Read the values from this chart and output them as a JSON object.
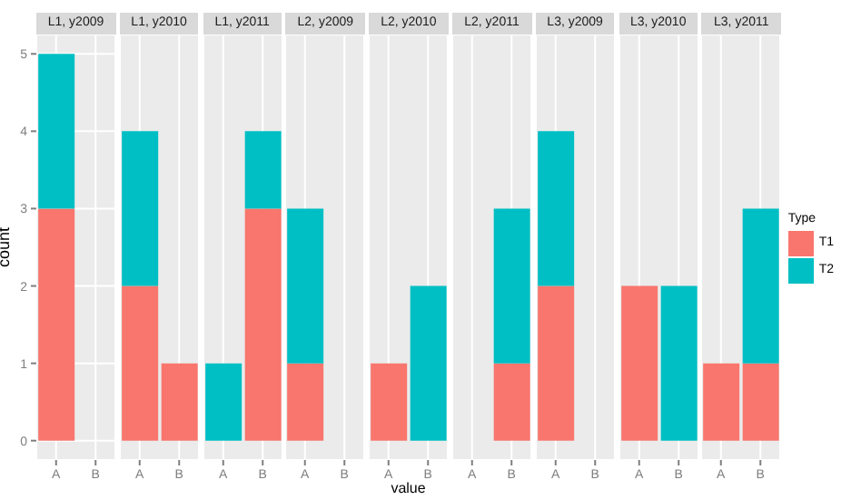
{
  "chart_data": [
    {
      "type": "bar",
      "title": "L1, y2009",
      "ylabel": "count",
      "categories": [
        "A",
        "B"
      ],
      "stacked": true,
      "ylim": [
        -0.25,
        5.25
      ],
      "yticks": [
        0,
        1,
        2,
        3,
        4,
        5
      ],
      "grid": true,
      "legend": false,
      "series": [
        {
          "color": "#f8766d",
          "values": [
            3,
            0
          ]
        },
        {
          "color": "#00bfc4",
          "values": [
            2,
            0
          ]
        }
      ]
    },
    {
      "type": "bar",
      "title": "L1, y2010",
      "categories": [
        "A",
        "B"
      ],
      "stacked": true,
      "ylim": [
        -0.25,
        5.25
      ],
      "yticks": [
        0,
        1,
        2,
        3,
        4,
        5
      ],
      "grid": true,
      "legend": false,
      "tick_labels": "x",
      "series": [
        {
          "color": "#f8766d",
          "values": [
            2,
            1
          ]
        },
        {
          "color": "#00bfc4",
          "values": [
            2,
            0
          ]
        }
      ]
    },
    {
      "type": "bar",
      "title": "L1, y2011",
      "categories": [
        "A",
        "B"
      ],
      "stacked": true,
      "ylim": [
        -0.25,
        5.25
      ],
      "yticks": [
        0,
        1,
        2,
        3,
        4,
        5
      ],
      "grid": true,
      "legend": false,
      "tick_labels": "x",
      "series": [
        {
          "color": "#f8766d",
          "values": [
            0,
            3
          ]
        },
        {
          "color": "#00bfc4",
          "values": [
            1,
            1
          ]
        }
      ]
    },
    {
      "type": "bar",
      "title": "L2, y2009",
      "categories": [
        "A",
        "B"
      ],
      "stacked": true,
      "ylim": [
        -0.25,
        5.25
      ],
      "yticks": [
        0,
        1,
        2,
        3,
        4,
        5
      ],
      "grid": true,
      "legend": false,
      "tick_labels": "x",
      "series": [
        {
          "color": "#f8766d",
          "values": [
            1,
            0
          ]
        },
        {
          "color": "#00bfc4",
          "values": [
            2,
            0
          ]
        }
      ]
    },
    {
      "type": "bar",
      "title": "L2, y2010",
      "xlabel": "value",
      "categories": [
        "A",
        "B"
      ],
      "stacked": true,
      "ylim": [
        -0.25,
        5.25
      ],
      "yticks": [
        0,
        1,
        2,
        3,
        4,
        5
      ],
      "grid": true,
      "legend": false,
      "tick_labels": "x",
      "series": [
        {
          "color": "#f8766d",
          "values": [
            1,
            0
          ]
        },
        {
          "color": "#00bfc4",
          "values": [
            0,
            2
          ]
        }
      ]
    },
    {
      "type": "bar",
      "title": "L2, y2011",
      "categories": [
        "A",
        "B"
      ],
      "stacked": true,
      "ylim": [
        -0.25,
        5.25
      ],
      "yticks": [
        0,
        1,
        2,
        3,
        4,
        5
      ],
      "grid": true,
      "legend": false,
      "tick_labels": "x",
      "series": [
        {
          "color": "#f8766d",
          "values": [
            0,
            1
          ]
        },
        {
          "color": "#00bfc4",
          "values": [
            0,
            2
          ]
        }
      ]
    },
    {
      "type": "bar",
      "title": "L3, y2009",
      "categories": [
        "A",
        "B"
      ],
      "stacked": true,
      "ylim": [
        -0.25,
        5.25
      ],
      "yticks": [
        0,
        1,
        2,
        3,
        4,
        5
      ],
      "grid": true,
      "legend": false,
      "tick_labels": "x",
      "series": [
        {
          "color": "#f8766d",
          "values": [
            2,
            0
          ]
        },
        {
          "color": "#00bfc4",
          "values": [
            2,
            0
          ]
        }
      ]
    },
    {
      "type": "bar",
      "title": "L3, y2010",
      "categories": [
        "A",
        "B"
      ],
      "stacked": true,
      "ylim": [
        -0.25,
        5.25
      ],
      "yticks": [
        0,
        1,
        2,
        3,
        4,
        5
      ],
      "grid": true,
      "legend": false,
      "tick_labels": "x",
      "series": [
        {
          "color": "#f8766d",
          "values": [
            2,
            0
          ]
        },
        {
          "color": "#00bfc4",
          "values": [
            0,
            2
          ]
        }
      ]
    },
    {
      "type": "bar",
      "title": "L3, y2011",
      "legend_title": "Type",
      "categories": [
        "A",
        "B"
      ],
      "stacked": true,
      "ylim": [
        -0.25,
        5.25
      ],
      "yticks": [
        0,
        1,
        2,
        3,
        4,
        5
      ],
      "grid": true,
      "legend": "right",
      "tick_labels": "x",
      "series": [
        {
          "name": "T1",
          "color": "#f8766d",
          "values": [
            1,
            1
          ]
        },
        {
          "name": "T2",
          "color": "#00bfc4",
          "values": [
            0,
            2
          ]
        }
      ]
    }
  ]
}
